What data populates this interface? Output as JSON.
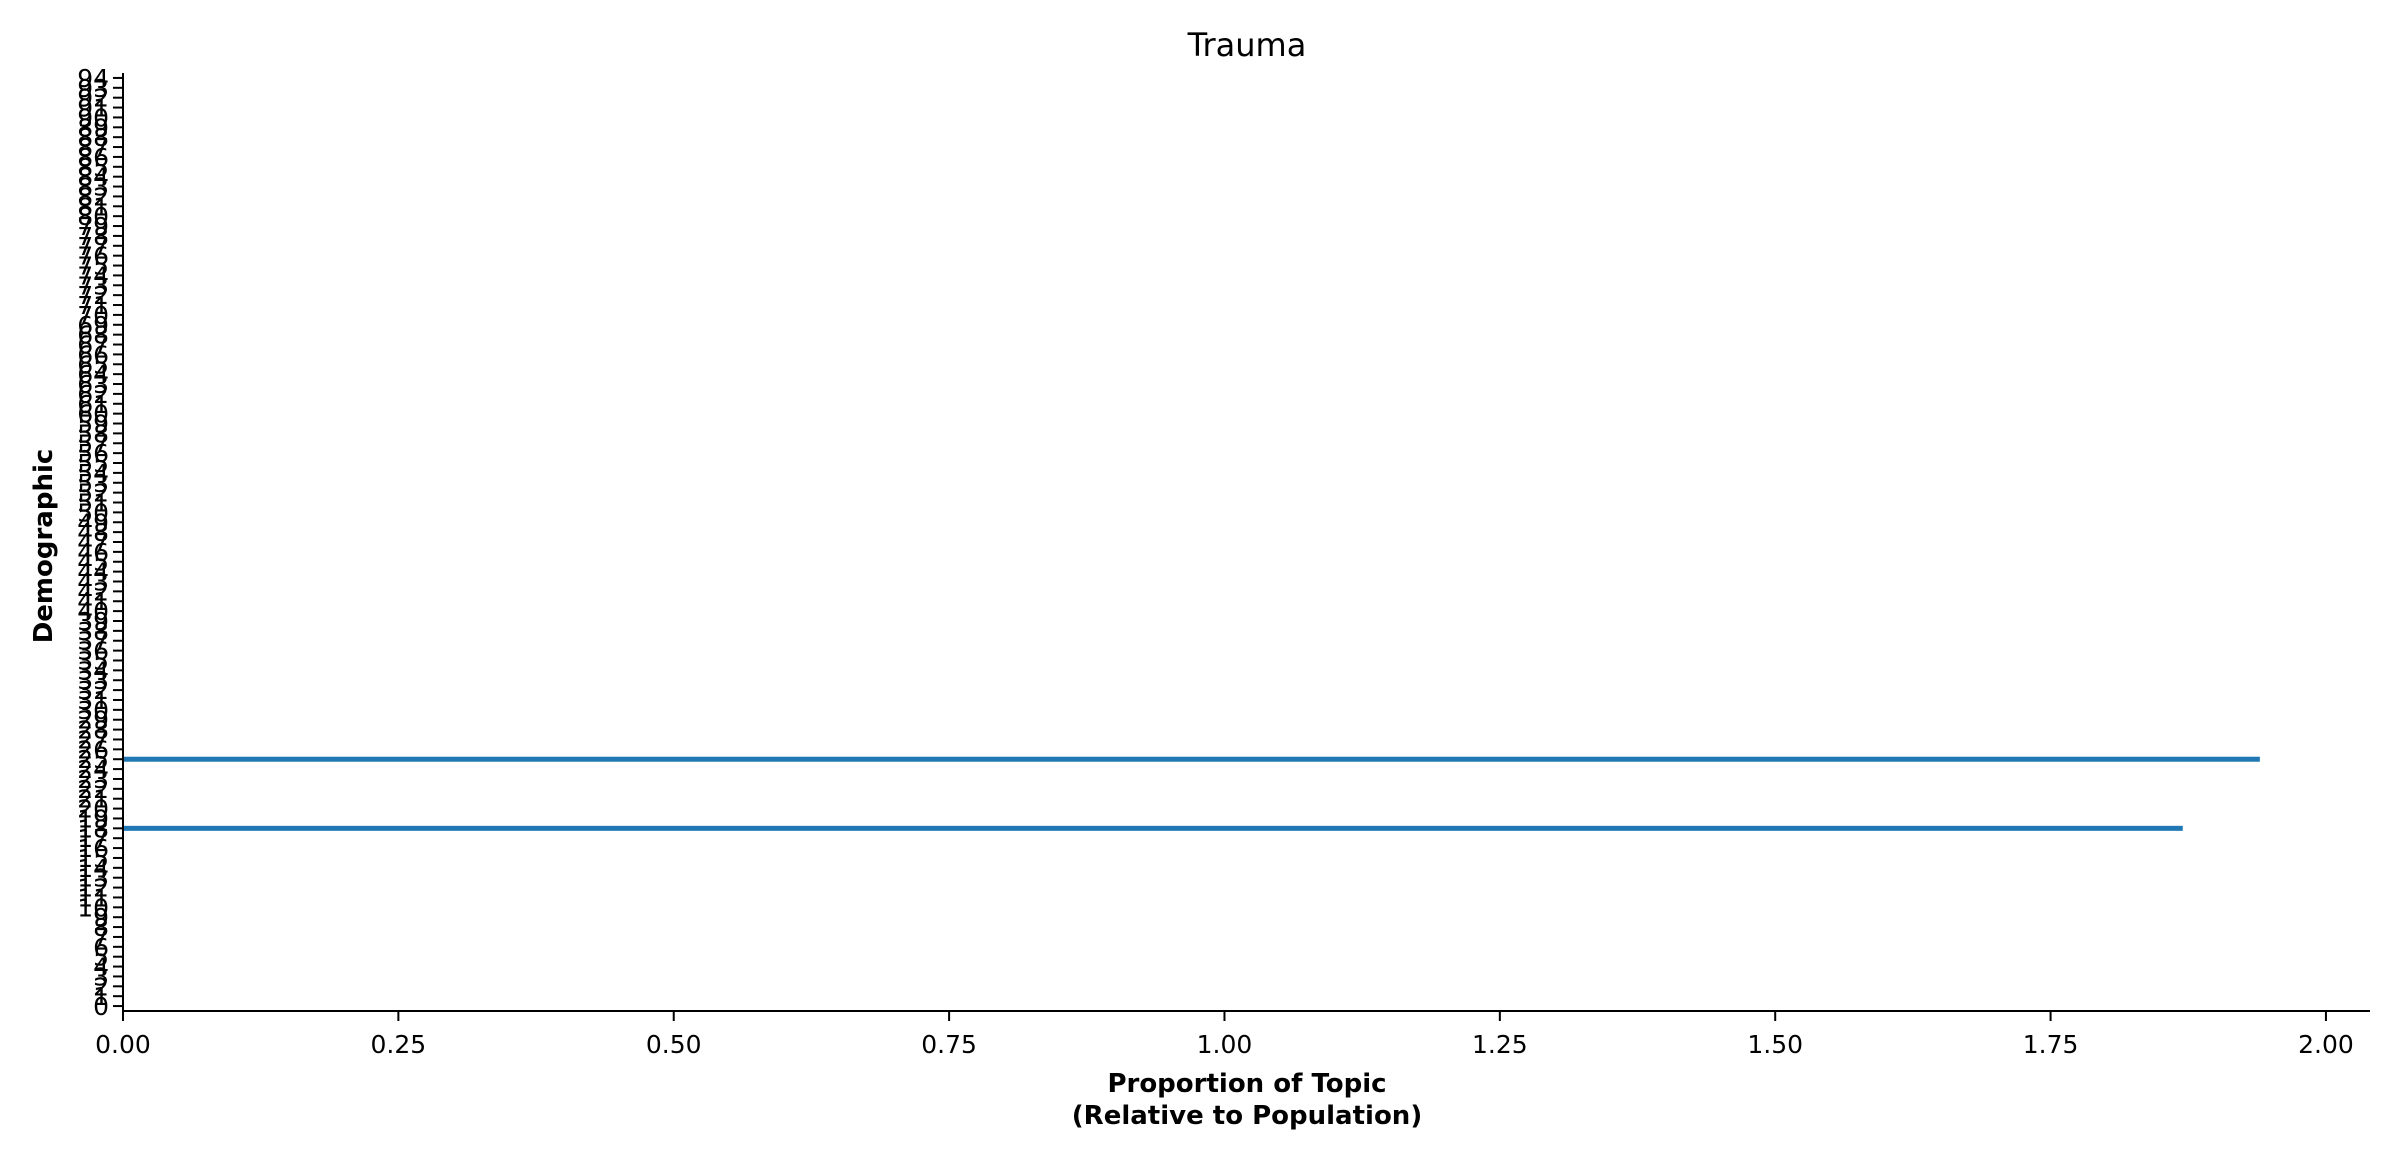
{
  "chart_data": {
    "type": "bar",
    "orientation": "horizontal",
    "title": "Trauma",
    "xlabel_lines": [
      "Proportion of Topic",
      "(Relative to Population)"
    ],
    "ylabel": "Demographic",
    "xlim": [
      0,
      2.04
    ],
    "xticks": [
      0.0,
      0.25,
      0.5,
      0.75,
      1.0,
      1.25,
      1.5,
      1.75,
      2.0
    ],
    "xtick_labels": [
      "0.00",
      "0.25",
      "0.50",
      "0.75",
      "1.00",
      "1.25",
      "1.50",
      "1.75",
      "2.00"
    ],
    "ylim": [
      -0.5,
      94.5
    ],
    "yticks": [
      0,
      1,
      2,
      3,
      4,
      5,
      6,
      7,
      8,
      9,
      10,
      11,
      12,
      13,
      14,
      15,
      16,
      17,
      18,
      19,
      20,
      21,
      22,
      23,
      24,
      25,
      26,
      27,
      28,
      29,
      30,
      31,
      32,
      33,
      34,
      35,
      36,
      37,
      38,
      39,
      40,
      41,
      42,
      43,
      44,
      45,
      46,
      47,
      48,
      49,
      50,
      51,
      52,
      53,
      54,
      55,
      56,
      57,
      58,
      59,
      60,
      61,
      62,
      63,
      64,
      65,
      66,
      67,
      68,
      69,
      70,
      71,
      72,
      73,
      74,
      75,
      76,
      77,
      78,
      79,
      80,
      81,
      82,
      83,
      84,
      85,
      86,
      87,
      88,
      89,
      90,
      91,
      92,
      93,
      94
    ],
    "bar_color": "#1f77b4",
    "bars": [
      {
        "category": 18,
        "value": 1.87
      },
      {
        "category": 25,
        "value": 1.94
      }
    ],
    "grid": false,
    "legend": "none"
  }
}
